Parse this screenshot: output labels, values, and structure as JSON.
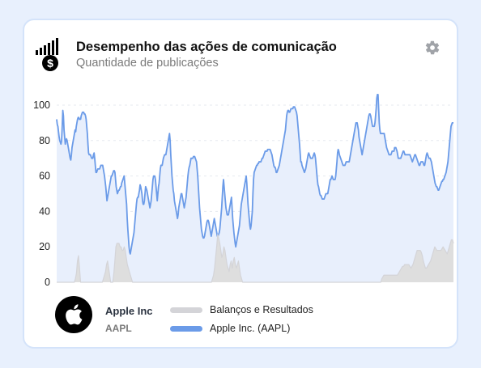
{
  "header": {
    "title": "Desempenho das ações de comunicação",
    "subtitle": "Quantidade de publicações",
    "logo_icon": "chart-dollar-icon",
    "settings_icon": "gear-icon"
  },
  "company": {
    "name": "Apple Inc",
    "ticker": "AAPL",
    "logo_icon": "apple-logo-icon"
  },
  "colors": {
    "primary": "#6b9be8",
    "primary_fill": "#e8effc",
    "secondary": "#d4d4d8",
    "secondary_fill": "#dedede",
    "background": "#e8f0fd",
    "card_border": "#d4e3fa"
  },
  "chart_data": {
    "type": "area",
    "title": "",
    "xlabel": "",
    "ylabel": "",
    "ylim": [
      0,
      100
    ],
    "yticks": [
      0,
      20,
      40,
      60,
      80,
      100
    ],
    "grid": true,
    "legend_position": "bottom",
    "series": [
      {
        "name": "Balanços e Resultados",
        "color": "#d4d4d8",
        "fill": "#dedede",
        "values": [
          0,
          0,
          0,
          0,
          0,
          0,
          0,
          0,
          0,
          0,
          0,
          0,
          0,
          0,
          0,
          0,
          0,
          0,
          2,
          5,
          12,
          15,
          8,
          0,
          0,
          0,
          0,
          0,
          0,
          0,
          0,
          0,
          0,
          0,
          0,
          0,
          0,
          0,
          0,
          0,
          0,
          0,
          0,
          0,
          0,
          2,
          4,
          6,
          10,
          12,
          8,
          4,
          0,
          0,
          0,
          5,
          12,
          20,
          22,
          22,
          22,
          20,
          20,
          18,
          18,
          20,
          18,
          14,
          10,
          8,
          6,
          4,
          2,
          0,
          0,
          0,
          0,
          0,
          0,
          0,
          0,
          0,
          0,
          0,
          0,
          0,
          0,
          0,
          0,
          0,
          0,
          0,
          0,
          0,
          0,
          0,
          0,
          0,
          0,
          0,
          0,
          0,
          0,
          0,
          0,
          0,
          0,
          0,
          0,
          0,
          0,
          0,
          0,
          0,
          0,
          0,
          0,
          0,
          0,
          0,
          0,
          0,
          0,
          0,
          0,
          0,
          0,
          0,
          0,
          0,
          0,
          0,
          0,
          0,
          0,
          0,
          0,
          0,
          0,
          0,
          0,
          0,
          0,
          0,
          0,
          0,
          0,
          0,
          0,
          0,
          2,
          4,
          8,
          14,
          20,
          27,
          25,
          22,
          18,
          14,
          16,
          20,
          18,
          14,
          10,
          8,
          6,
          10,
          12,
          8,
          12,
          14,
          10,
          8,
          10,
          12,
          8,
          4,
          2,
          0,
          0,
          0,
          0,
          0,
          0,
          0,
          0,
          0,
          0,
          0,
          0,
          0,
          0,
          0,
          0,
          0,
          0,
          0,
          0,
          0,
          0,
          0,
          0,
          0,
          0,
          0,
          0,
          0,
          0,
          0,
          0,
          0,
          0,
          0,
          0,
          0,
          0,
          0,
          0,
          0,
          0,
          0,
          0,
          0,
          0,
          0,
          0,
          0,
          0,
          0,
          0,
          0,
          0,
          0,
          0,
          0,
          0,
          0,
          0,
          0,
          0,
          0,
          0,
          0,
          0,
          0,
          0,
          0,
          0,
          0,
          0,
          0,
          0,
          0,
          0,
          0,
          0,
          0,
          0,
          0,
          0,
          0,
          0,
          0,
          0,
          0,
          0,
          0,
          0,
          0,
          0,
          0,
          0,
          0,
          0,
          0,
          0,
          0,
          0,
          0,
          0,
          0,
          0,
          0,
          0,
          0,
          0,
          0,
          0,
          0,
          0,
          0,
          0,
          0,
          0,
          0,
          0,
          0,
          0,
          0,
          0,
          0,
          0,
          0,
          0,
          0,
          0,
          0,
          0,
          0,
          0,
          0,
          0,
          2,
          3,
          4,
          4,
          4,
          4,
          4,
          4,
          4,
          4,
          4,
          4,
          4,
          4,
          4,
          4,
          5,
          6,
          7,
          8,
          9,
          9,
          10,
          10,
          10,
          10,
          10,
          9,
          8,
          9,
          10,
          12,
          14,
          16,
          18,
          18,
          18,
          18,
          17,
          15,
          12,
          10,
          8,
          8,
          9,
          10,
          11,
          12,
          14,
          16,
          18,
          20,
          19,
          18,
          18,
          18,
          18,
          18,
          19,
          20,
          19,
          18,
          17,
          16,
          18,
          20,
          22,
          24,
          24,
          22
        ]
      },
      {
        "name": "Apple Inc. (AAPL)",
        "color": "#6b9be8",
        "fill": "#e8effc",
        "values": [
          92,
          89,
          88,
          85,
          82,
          80,
          79,
          78,
          80,
          88,
          97,
          94,
          86,
          82,
          78,
          80,
          81,
          80,
          78,
          76,
          74,
          72,
          70,
          69,
          72,
          76,
          78,
          80,
          82,
          84,
          86,
          85,
          88,
          90,
          92,
          93,
          93,
          92,
          92,
          92,
          94,
          95,
          96,
          96,
          96,
          95,
          95,
          94,
          92,
          88,
          84,
          78,
          73,
          72,
          72,
          72,
          71,
          70,
          70,
          70,
          72,
          73,
          70,
          66,
          62,
          62,
          63,
          64,
          64,
          64,
          64,
          65,
          66,
          66,
          66,
          66,
          64,
          62,
          60,
          57,
          54,
          50,
          46,
          48,
          50,
          52,
          54,
          56,
          58,
          60,
          60,
          61,
          62,
          63,
          63,
          62,
          58,
          54,
          52,
          50,
          51,
          52,
          52,
          53,
          54,
          54,
          56,
          57,
          58,
          59,
          60,
          56,
          52,
          48,
          44,
          36,
          30,
          25,
          20,
          17,
          16,
          18,
          20,
          22,
          24,
          26,
          28,
          32,
          36,
          40,
          44,
          47,
          48,
          48,
          50,
          52,
          55,
          54,
          52,
          50,
          46,
          44,
          44,
          46,
          50,
          54,
          53,
          52,
          50,
          48,
          46,
          44,
          42,
          44,
          46,
          50,
          54,
          58,
          60,
          60,
          60,
          58,
          54,
          50,
          46,
          50,
          54,
          56,
          60,
          64,
          66,
          66,
          66,
          68,
          70,
          71,
          72,
          72,
          72,
          74,
          76,
          78,
          80,
          82,
          84,
          80,
          72,
          66,
          60,
          56,
          52,
          50,
          46,
          44,
          42,
          40,
          38,
          36,
          38,
          42,
          44,
          46,
          48,
          50,
          50,
          48,
          46,
          44,
          42,
          44,
          46,
          48,
          52,
          56,
          60,
          63,
          65,
          66,
          68,
          70,
          70,
          70,
          70,
          71,
          71,
          71,
          70,
          69,
          68,
          64,
          60,
          54,
          48,
          42,
          38,
          34,
          30,
          28,
          26,
          25,
          25,
          26,
          28,
          30,
          32,
          34,
          35,
          35,
          34,
          32,
          30,
          28,
          26,
          28,
          30,
          32,
          34,
          36,
          34,
          32,
          30,
          28,
          26,
          26,
          27,
          28,
          30,
          34,
          38,
          42,
          48,
          54,
          58,
          54,
          50,
          46,
          42,
          40,
          38,
          38,
          38,
          40,
          42,
          44,
          46,
          48,
          42,
          36,
          32,
          28,
          25,
          22,
          20,
          22,
          24,
          26,
          28,
          30,
          32,
          36,
          40,
          44,
          46,
          48,
          50,
          52,
          54,
          56,
          58,
          60,
          56,
          50,
          44,
          40,
          36,
          32,
          30,
          32,
          36,
          40,
          50,
          58,
          62,
          63,
          64,
          65,
          66,
          66,
          67,
          67,
          68,
          68,
          68,
          68,
          69,
          70,
          70,
          71,
          72,
          73,
          74,
          74,
          74,
          74,
          75,
          75,
          75,
          75,
          75,
          74,
          73,
          72,
          70,
          68,
          66,
          65,
          65,
          64,
          62,
          62,
          63,
          64,
          65,
          66,
          68,
          70,
          72,
          74,
          76,
          78,
          80,
          82,
          84,
          86,
          90,
          94,
          96,
          97,
          97,
          96,
          96,
          97,
          98,
          98,
          98,
          98,
          99,
          99,
          99,
          98,
          97,
          96,
          94,
          90,
          86,
          82,
          78,
          73,
          68,
          68,
          66,
          65,
          64,
          63,
          62,
          63,
          64,
          66,
          68,
          70,
          72,
          73,
          72,
          71,
          70,
          70,
          70,
          70,
          71,
          72,
          73,
          72,
          70,
          66,
          62,
          58,
          55,
          54,
          52,
          50,
          49,
          49,
          48,
          47,
          47,
          47,
          47,
          48,
          49,
          50,
          50,
          50,
          50,
          52,
          54,
          56,
          58,
          58,
          59,
          60,
          59,
          58,
          58,
          58,
          58,
          60,
          64,
          68,
          73,
          75,
          74,
          72,
          71,
          70,
          69,
          68,
          67,
          66,
          66,
          66,
          66,
          67,
          68,
          68,
          68,
          68,
          68,
          68,
          70,
          72,
          74,
          76,
          78,
          80,
          82,
          84,
          86,
          88,
          90,
          90,
          90,
          88,
          86,
          82,
          80,
          78,
          76,
          74,
          72,
          74,
          76,
          78,
          80,
          82,
          84,
          86,
          88,
          90,
          92,
          94,
          95,
          95,
          94,
          92,
          90,
          88,
          88,
          88,
          88,
          90,
          94,
          98,
          104,
          110,
          106,
          98,
          90,
          86,
          84,
          84,
          84,
          84,
          84,
          84,
          84,
          82,
          80,
          78,
          76,
          75,
          74,
          73,
          72,
          72,
          72,
          72,
          73,
          74,
          74,
          74,
          74,
          76,
          76,
          76,
          75,
          74,
          72,
          70,
          70,
          70,
          70,
          70,
          71,
          72,
          73,
          74,
          74,
          73,
          72,
          72,
          72,
          72,
          72,
          72,
          72,
          72,
          72,
          71,
          70,
          69,
          68,
          69,
          70,
          71,
          72,
          72,
          71,
          70,
          69,
          68,
          67,
          66,
          66,
          67,
          68,
          68,
          68,
          68,
          67,
          66,
          66,
          68,
          70,
          72,
          73,
          72,
          71,
          70,
          70,
          70,
          69,
          68,
          66,
          64,
          62,
          60,
          58,
          56,
          55,
          54,
          54,
          53,
          52,
          52,
          53,
          54,
          55,
          56,
          57,
          57,
          58,
          58,
          59,
          60,
          61,
          62,
          64,
          66,
          68,
          72,
          76,
          80,
          84,
          88,
          89,
          90,
          90,
          90
        ]
      }
    ]
  }
}
